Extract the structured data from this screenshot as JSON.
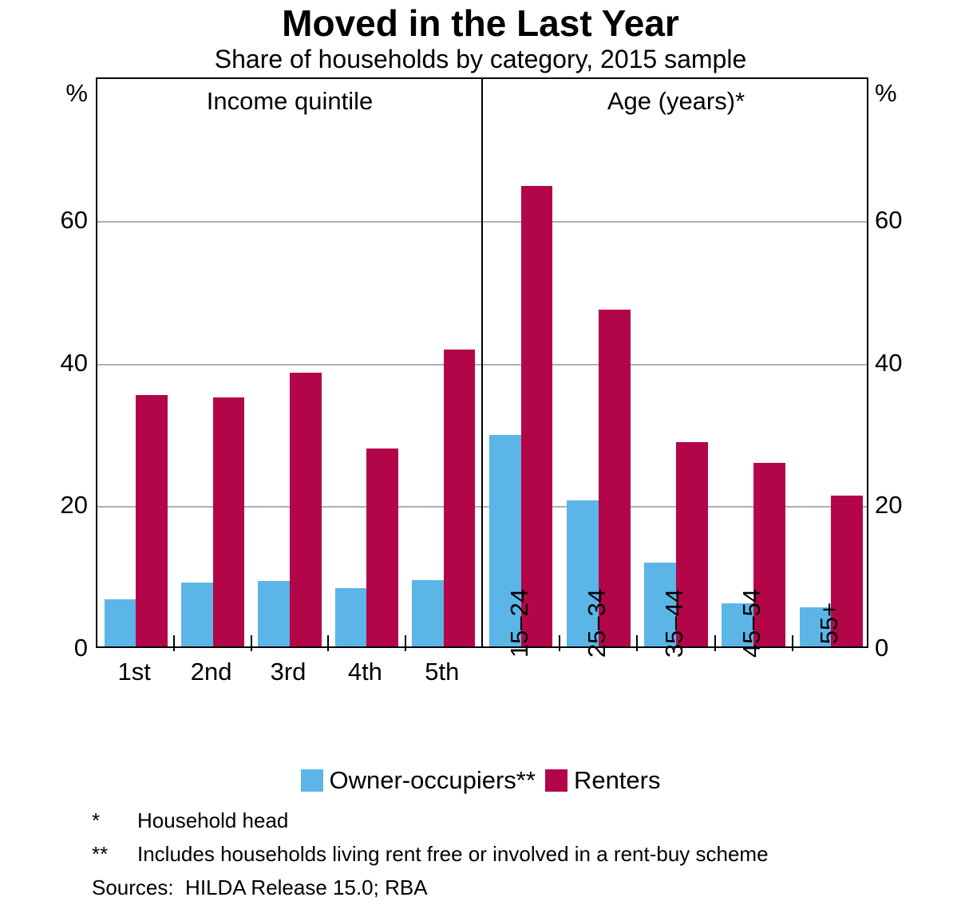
{
  "title": "Moved in the Last Year",
  "subtitle": "Share of households by category, 2015 sample",
  "y_axis": {
    "unit": "%",
    "ticks": [
      0,
      20,
      40,
      60
    ],
    "max": 80
  },
  "colors": {
    "owner_occupiers": "#5BB5E7",
    "renters": "#B20649",
    "gridline": "#b0b0b0",
    "axis": "#000000"
  },
  "legend": [
    {
      "label": "Owner-occupiers**",
      "color": "#5BB5E7"
    },
    {
      "label": "Renters",
      "color": "#B20649"
    }
  ],
  "footnotes": [
    {
      "marker": "*",
      "text": "Household head"
    },
    {
      "marker": "**",
      "text": "Includes households living rent free or involved in a rent-buy scheme"
    }
  ],
  "sources": "Sources:  HILDA Release 15.0; RBA",
  "chart_data": {
    "type": "bar",
    "title": "Moved in the Last Year",
    "subtitle": "Share of households by category, 2015 sample",
    "ylabel": "%",
    "ylim": [
      0,
      80
    ],
    "yticks": [
      0,
      20,
      40,
      60
    ],
    "grid": true,
    "legend_position": "bottom",
    "panels": [
      {
        "label": "Income quintile",
        "categories": [
          "1st",
          "2nd",
          "3rd",
          "4th",
          "5th"
        ],
        "category_label_rotation": 0,
        "series": [
          {
            "name": "Owner-occupiers**",
            "color": "#5BB5E7",
            "values": [
              6.6,
              9.0,
              9.2,
              8.2,
              9.3
            ]
          },
          {
            "name": "Renters",
            "color": "#B20649",
            "values": [
              35.3,
              34.9,
              38.4,
              27.7,
              41.6
            ]
          }
        ]
      },
      {
        "label": "Age (years)*",
        "categories": [
          "15–24",
          "25–34",
          "35–44",
          "45–54",
          "55+"
        ],
        "category_label_rotation": -90,
        "series": [
          {
            "name": "Owner-occupiers**",
            "color": "#5BB5E7",
            "values": [
              29.7,
              20.5,
              11.7,
              6.0,
              5.5
            ]
          },
          {
            "name": "Renters",
            "color": "#B20649",
            "values": [
              64.6,
              47.2,
              28.6,
              25.7,
              21.1
            ]
          }
        ]
      }
    ]
  }
}
